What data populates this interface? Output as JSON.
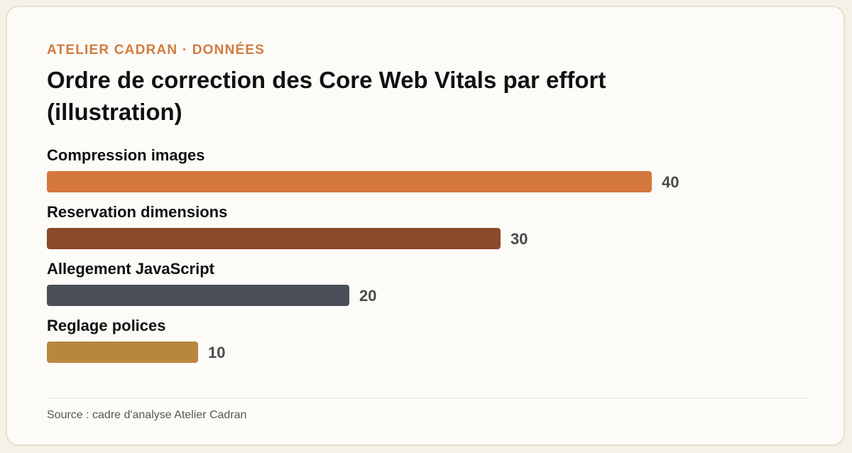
{
  "header": {
    "kicker": "ATELIER CADRAN · DONNÉES",
    "title": "Ordre de correction des Core Web Vitals par effort (illustration)"
  },
  "footer": {
    "source": "Source : cadre d'analyse Atelier Cadran"
  },
  "chart_data": {
    "type": "bar",
    "orientation": "horizontal",
    "title": "Ordre de correction des Core Web Vitals par effort (illustration)",
    "categories": [
      "Compression images",
      "Reservation dimensions",
      "Allegement JavaScript",
      "Reglage polices"
    ],
    "values": [
      40,
      30,
      20,
      10
    ],
    "value_labels": [
      "40",
      "30",
      "20",
      "10"
    ],
    "colors": [
      "#d4773d",
      "#8b4a29",
      "#4b5058",
      "#b8873f"
    ],
    "xlim": [
      0,
      45
    ],
    "grid": false,
    "legend": "none"
  }
}
